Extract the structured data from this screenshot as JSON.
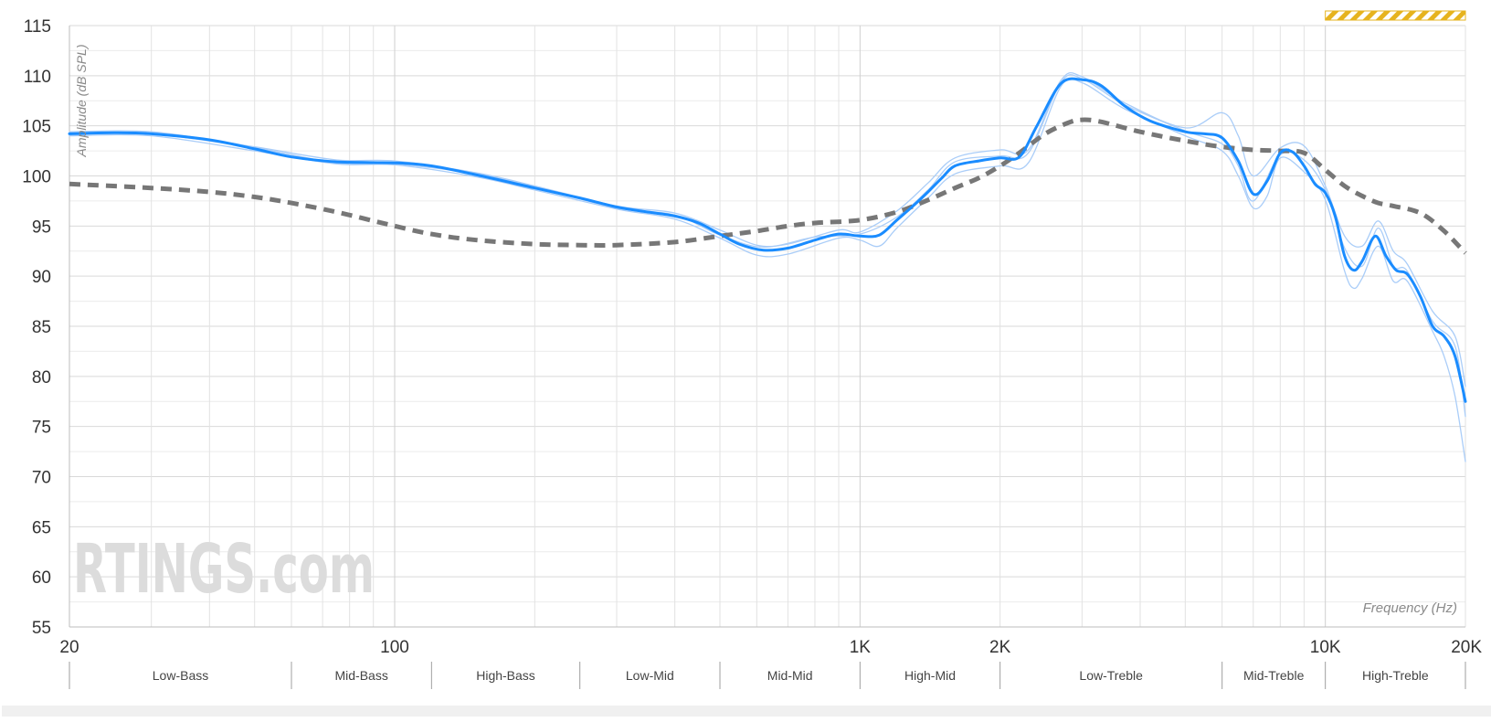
{
  "chart_data": {
    "type": "line",
    "title": "",
    "xlabel": "Frequency (Hz)",
    "ylabel": "Amplitude (dB SPL)",
    "x_scale": "log",
    "xlim": [
      20,
      20000
    ],
    "ylim": [
      55,
      115
    ],
    "grid": true,
    "y_ticks": [
      55,
      60,
      65,
      70,
      75,
      80,
      85,
      90,
      95,
      100,
      105,
      110,
      115
    ],
    "x_ticks": [
      {
        "value": 20,
        "label": "20"
      },
      {
        "value": 100,
        "label": "100"
      },
      {
        "value": 1000,
        "label": "1K"
      },
      {
        "value": 2000,
        "label": "2K"
      },
      {
        "value": 10000,
        "label": "10K"
      },
      {
        "value": 20000,
        "label": "20K"
      }
    ],
    "bands": [
      {
        "name": "Low-Bass",
        "from": 20,
        "to": 60
      },
      {
        "name": "Mid-Bass",
        "from": 60,
        "to": 120
      },
      {
        "name": "High-Bass",
        "from": 120,
        "to": 250
      },
      {
        "name": "Low-Mid",
        "from": 250,
        "to": 500
      },
      {
        "name": "Mid-Mid",
        "from": 500,
        "to": 1000
      },
      {
        "name": "High-Mid",
        "from": 1000,
        "to": 2000
      },
      {
        "name": "Low-Treble",
        "from": 2000,
        "to": 6000
      },
      {
        "name": "Mid-Treble",
        "from": 6000,
        "to": 10000
      },
      {
        "name": "High-Treble",
        "from": 10000,
        "to": 20000
      }
    ],
    "highlight_range": {
      "from": 10000,
      "to": 20000,
      "color": "#e6b31e"
    },
    "watermark": "RTINGS.com",
    "series": [
      {
        "role": "average",
        "color": "#1a8cff",
        "style": "solid",
        "points": [
          [
            20,
            104.2
          ],
          [
            25,
            104.3
          ],
          [
            30,
            104.2
          ],
          [
            40,
            103.6
          ],
          [
            50,
            102.7
          ],
          [
            60,
            101.9
          ],
          [
            75,
            101.4
          ],
          [
            100,
            101.3
          ],
          [
            120,
            101.0
          ],
          [
            150,
            100.1
          ],
          [
            200,
            98.8
          ],
          [
            250,
            97.8
          ],
          [
            300,
            96.9
          ],
          [
            350,
            96.4
          ],
          [
            400,
            96.0
          ],
          [
            450,
            95.3
          ],
          [
            500,
            94.2
          ],
          [
            550,
            93.2
          ],
          [
            620,
            92.6
          ],
          [
            700,
            92.8
          ],
          [
            800,
            93.6
          ],
          [
            900,
            94.2
          ],
          [
            1000,
            94.0
          ],
          [
            1100,
            94.1
          ],
          [
            1200,
            95.6
          ],
          [
            1300,
            97.0
          ],
          [
            1400,
            98.4
          ],
          [
            1500,
            99.8
          ],
          [
            1600,
            101.0
          ],
          [
            1800,
            101.5
          ],
          [
            2000,
            101.8
          ],
          [
            2200,
            101.9
          ],
          [
            2400,
            105.0
          ],
          [
            2700,
            109.2
          ],
          [
            3000,
            109.6
          ],
          [
            3300,
            109.0
          ],
          [
            3700,
            107.0
          ],
          [
            4200,
            105.5
          ],
          [
            5000,
            104.4
          ],
          [
            5500,
            104.2
          ],
          [
            6000,
            103.8
          ],
          [
            6500,
            101.5
          ],
          [
            7000,
            98.2
          ],
          [
            7500,
            99.5
          ],
          [
            8000,
            102.3
          ],
          [
            8500,
            102.4
          ],
          [
            9000,
            101.0
          ],
          [
            9500,
            99.2
          ],
          [
            10000,
            98.3
          ],
          [
            10500,
            96.0
          ],
          [
            11000,
            92.0
          ],
          [
            11500,
            90.6
          ],
          [
            12000,
            91.5
          ],
          [
            12800,
            94.0
          ],
          [
            13500,
            92.0
          ],
          [
            14200,
            90.6
          ],
          [
            15000,
            90.2
          ],
          [
            16000,
            88.0
          ],
          [
            17000,
            85.0
          ],
          [
            18000,
            84.0
          ],
          [
            19000,
            82.0
          ],
          [
            20000,
            77.5
          ]
        ]
      },
      {
        "role": "measurement",
        "color": "#aacdf8",
        "style": "solid",
        "points": [
          [
            20,
            104.4
          ],
          [
            30,
            104.4
          ],
          [
            50,
            102.9
          ],
          [
            75,
            101.6
          ],
          [
            100,
            101.5
          ],
          [
            150,
            100.3
          ],
          [
            200,
            99.0
          ],
          [
            300,
            97.0
          ],
          [
            400,
            96.3
          ],
          [
            500,
            94.6
          ],
          [
            600,
            93.1
          ],
          [
            700,
            93.2
          ],
          [
            900,
            94.6
          ],
          [
            1000,
            94.4
          ],
          [
            1200,
            96.5
          ],
          [
            1400,
            99.3
          ],
          [
            1600,
            101.8
          ],
          [
            2000,
            102.6
          ],
          [
            2300,
            102.6
          ],
          [
            2700,
            109.5
          ],
          [
            3000,
            109.9
          ],
          [
            3700,
            107.3
          ],
          [
            5000,
            104.8
          ],
          [
            6000,
            106.3
          ],
          [
            6500,
            104.0
          ],
          [
            7000,
            100.0
          ],
          [
            8000,
            102.8
          ],
          [
            9000,
            103.0
          ],
          [
            10000,
            99.0
          ],
          [
            11000,
            94.0
          ],
          [
            12000,
            93.0
          ],
          [
            13000,
            95.5
          ],
          [
            14000,
            92.5
          ],
          [
            15000,
            91.2
          ],
          [
            17000,
            86.5
          ],
          [
            19000,
            84.0
          ],
          [
            20000,
            79.0
          ]
        ]
      },
      {
        "role": "measurement",
        "color": "#aacdf8",
        "style": "solid",
        "points": [
          [
            20,
            104.0
          ],
          [
            30,
            104.0
          ],
          [
            50,
            102.5
          ],
          [
            75,
            101.2
          ],
          [
            100,
            101.1
          ],
          [
            150,
            99.9
          ],
          [
            200,
            98.6
          ],
          [
            300,
            96.7
          ],
          [
            400,
            95.7
          ],
          [
            500,
            93.8
          ],
          [
            600,
            92.1
          ],
          [
            700,
            92.2
          ],
          [
            900,
            93.8
          ],
          [
            1000,
            93.6
          ],
          [
            1100,
            93.0
          ],
          [
            1200,
            94.8
          ],
          [
            1400,
            97.8
          ],
          [
            1600,
            100.2
          ],
          [
            2000,
            101.0
          ],
          [
            2300,
            101.3
          ],
          [
            2700,
            108.9
          ],
          [
            3000,
            109.3
          ],
          [
            3700,
            106.7
          ],
          [
            5000,
            104.0
          ],
          [
            6000,
            102.5
          ],
          [
            6500,
            100.0
          ],
          [
            7000,
            96.8
          ],
          [
            7500,
            98.0
          ],
          [
            8000,
            101.8
          ],
          [
            9000,
            100.4
          ],
          [
            10000,
            97.6
          ],
          [
            11000,
            90.5
          ],
          [
            11500,
            88.8
          ],
          [
            12000,
            89.8
          ],
          [
            13000,
            93.0
          ],
          [
            14000,
            89.5
          ],
          [
            15000,
            89.5
          ],
          [
            17000,
            84.5
          ],
          [
            18000,
            82.0
          ],
          [
            19000,
            78.0
          ],
          [
            20000,
            71.5
          ]
        ]
      },
      {
        "role": "measurement",
        "color": "#aacdf8",
        "style": "solid",
        "points": [
          [
            20,
            104.3
          ],
          [
            30,
            104.2
          ],
          [
            50,
            102.8
          ],
          [
            75,
            101.3
          ],
          [
            100,
            101.2
          ],
          [
            150,
            100.2
          ],
          [
            200,
            98.9
          ],
          [
            300,
            96.8
          ],
          [
            400,
            96.1
          ],
          [
            500,
            94.1
          ],
          [
            620,
            92.9
          ],
          [
            800,
            93.9
          ],
          [
            1000,
            94.2
          ],
          [
            1200,
            95.9
          ],
          [
            1400,
            98.6
          ],
          [
            1600,
            101.4
          ],
          [
            2000,
            102.0
          ],
          [
            2300,
            102.3
          ],
          [
            2700,
            109.3
          ],
          [
            3000,
            109.7
          ],
          [
            3700,
            107.1
          ],
          [
            5000,
            104.5
          ],
          [
            6000,
            103.2
          ],
          [
            6500,
            101.0
          ],
          [
            7000,
            97.5
          ],
          [
            8000,
            102.1
          ],
          [
            9000,
            101.6
          ],
          [
            10000,
            98.6
          ],
          [
            11000,
            92.8
          ],
          [
            12000,
            91.0
          ],
          [
            13000,
            94.8
          ],
          [
            14000,
            91.0
          ],
          [
            15000,
            90.5
          ],
          [
            17000,
            85.5
          ],
          [
            19000,
            83.0
          ],
          [
            20000,
            76.0
          ]
        ]
      },
      {
        "role": "target",
        "color": "#777777",
        "style": "dashed",
        "points": [
          [
            20,
            99.2
          ],
          [
            30,
            98.8
          ],
          [
            40,
            98.4
          ],
          [
            50,
            97.9
          ],
          [
            60,
            97.3
          ],
          [
            75,
            96.4
          ],
          [
            100,
            95.0
          ],
          [
            120,
            94.2
          ],
          [
            150,
            93.6
          ],
          [
            200,
            93.2
          ],
          [
            250,
            93.1
          ],
          [
            300,
            93.1
          ],
          [
            400,
            93.4
          ],
          [
            500,
            94.0
          ],
          [
            600,
            94.5
          ],
          [
            700,
            95.0
          ],
          [
            800,
            95.3
          ],
          [
            1000,
            95.6
          ],
          [
            1200,
            96.4
          ],
          [
            1400,
            97.6
          ],
          [
            1600,
            98.8
          ],
          [
            1800,
            99.8
          ],
          [
            2000,
            101.0
          ],
          [
            2200,
            102.3
          ],
          [
            2500,
            104.2
          ],
          [
            2800,
            105.3
          ],
          [
            3000,
            105.6
          ],
          [
            3300,
            105.4
          ],
          [
            4000,
            104.4
          ],
          [
            5000,
            103.5
          ],
          [
            6000,
            102.9
          ],
          [
            7000,
            102.6
          ],
          [
            8000,
            102.5
          ],
          [
            9000,
            102.3
          ],
          [
            10000,
            100.6
          ],
          [
            11000,
            99.0
          ],
          [
            12000,
            98.0
          ],
          [
            13000,
            97.3
          ],
          [
            14000,
            97.0
          ],
          [
            16000,
            96.3
          ],
          [
            18000,
            94.5
          ],
          [
            20000,
            92.3
          ]
        ]
      }
    ]
  }
}
